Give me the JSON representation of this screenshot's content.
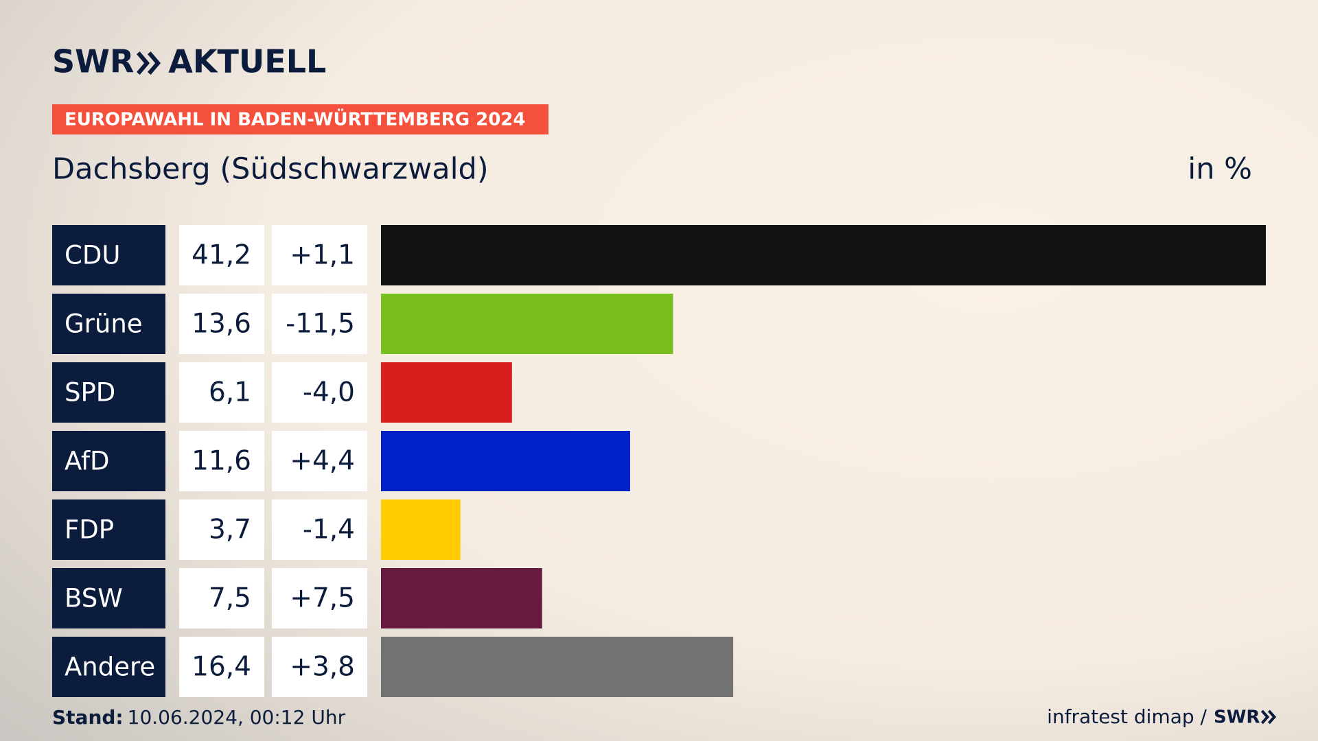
{
  "header": {
    "brand": "SWR",
    "brand_suffix": "AKTUELL"
  },
  "chart_data": {
    "type": "bar",
    "orientation": "horizontal",
    "title": "EUROPAWAHL IN BADEN-WÜRTTEMBERG 2024",
    "subtitle": "Dachsberg (Südschwarzwald)",
    "unit_label": "in %",
    "categories": [
      "CDU",
      "Grüne",
      "SPD",
      "AfD",
      "FDP",
      "BSW",
      "Andere"
    ],
    "values": [
      41.2,
      13.6,
      6.1,
      11.6,
      3.7,
      7.5,
      16.4
    ],
    "value_labels": [
      "41,2",
      "13,6",
      "6,1",
      "11,6",
      "3,7",
      "7,5",
      "16,4"
    ],
    "changes": [
      1.1,
      -11.5,
      -4.0,
      4.4,
      -1.4,
      7.5,
      3.8
    ],
    "change_labels": [
      "+1,1",
      "-11,5",
      "-4,0",
      "+4,4",
      "-1,4",
      "+7,5",
      "+3,8"
    ],
    "colors": [
      "#121212",
      "#78be1e",
      "#d7201e",
      "#0021c8",
      "#ffcc00",
      "#661a3e",
      "#727272"
    ]
  },
  "footer": {
    "stand_label": "Stand:",
    "stand": "10.06.2024, 00:12 Uhr",
    "source": "infratest dimap /",
    "source_brand": "SWR"
  }
}
